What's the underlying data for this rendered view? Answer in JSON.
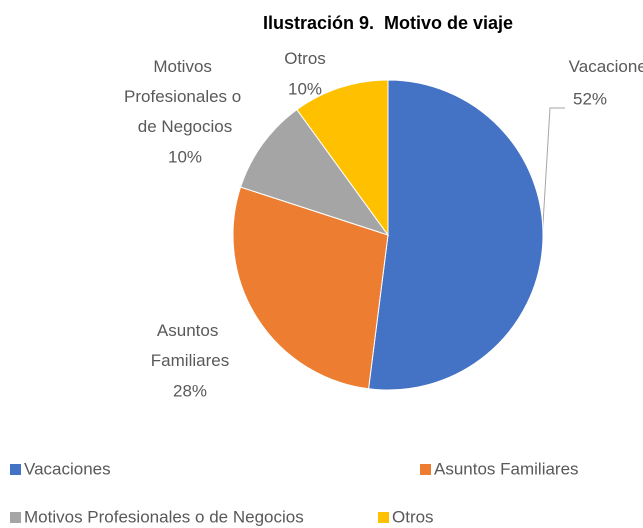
{
  "chart_data": {
    "type": "pie",
    "title": "Ilustración 9.  Motivo de viaje",
    "categories": [
      "Vacaciones",
      "Asuntos Familiares",
      "Motivos Profesionales o de Negocios",
      "Otros"
    ],
    "values": [
      52,
      28,
      10,
      10
    ],
    "value_labels": [
      "52%",
      "28%",
      "10%",
      "10%"
    ],
    "colors": [
      "#4472c4",
      "#ed7d31",
      "#a5a5a5",
      "#ffc000"
    ],
    "legend": "bottom"
  }
}
